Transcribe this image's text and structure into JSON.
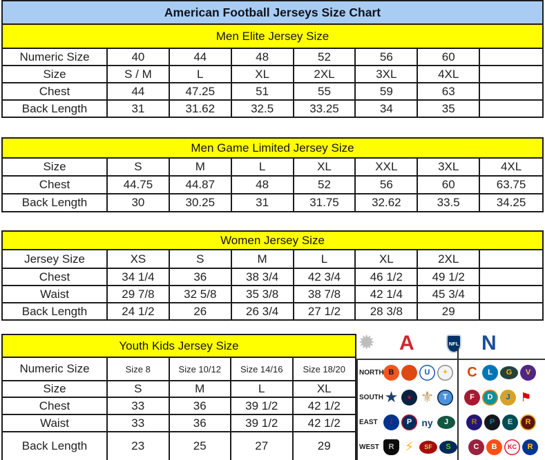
{
  "title": "American Football Jerseys Size Chart",
  "colors": {
    "title_bg": "#a9cdf2",
    "section_header_bg": "#ffff00",
    "border": "#1c1c1c",
    "afc_red": "#cf2630",
    "nfc_blue": "#1b4e9b",
    "nfl_shield_blue": "#013369",
    "starburst_silver": "#bdbdbd"
  },
  "tables": [
    {
      "id": "men_elite",
      "header": "Men Elite Jersey Size",
      "rows": [
        [
          "Numeric Size",
          "40",
          "44",
          "48",
          "52",
          "56",
          "60",
          ""
        ],
        [
          "Size",
          "S / M",
          "L",
          "XL",
          "2XL",
          "3XL",
          "4XL",
          ""
        ],
        [
          "Chest",
          "44",
          "47.25",
          "51",
          "55",
          "59",
          "63",
          ""
        ],
        [
          "Back Length",
          "31",
          "31.62",
          "32.5",
          "33.25",
          "34",
          "35",
          ""
        ]
      ]
    },
    {
      "id": "men_game_limited",
      "header": "Men Game Limited Jersey Size",
      "rows": [
        [
          "Size",
          "S",
          "M",
          "L",
          "XL",
          "XXL",
          "3XL",
          "4XL"
        ],
        [
          "Chest",
          "44.75",
          "44.87",
          "48",
          "52",
          "56",
          "60",
          "63.75"
        ],
        [
          "Back Length",
          "30",
          "30.25",
          "31",
          "31.75",
          "32.62",
          "33.5",
          "34.25"
        ]
      ]
    },
    {
      "id": "women",
      "header": "Women Jersey Size",
      "rows": [
        [
          "Jersey Size",
          "XS",
          "S",
          "M",
          "L",
          "XL",
          "2XL",
          ""
        ],
        [
          "Chest",
          "34 1/4",
          "36",
          "38 3/4",
          "42 3/4",
          "46 1/2",
          "49 1/2",
          ""
        ],
        [
          "Waist",
          "29 7/8",
          "32 5/8",
          "35 3/8",
          "38 7/8",
          "42 1/4",
          "45 3/4",
          ""
        ],
        [
          "Back Length",
          "24 1/2",
          "26",
          "26 3/4",
          "27 1/2",
          "28 3/8",
          "29",
          ""
        ]
      ]
    },
    {
      "id": "youth_kids",
      "header": "Youth Kids Jersey Size",
      "rows": [
        [
          "Numeric Size",
          "Size 8",
          "Size 10/12",
          "Size 14/16",
          "Size 18/20"
        ],
        [
          "Size",
          "S",
          "M",
          "L",
          "XL"
        ],
        [
          "Chest",
          "33",
          "36",
          "39 1/2",
          "42 1/2"
        ],
        [
          "Waist",
          "33",
          "36",
          "39 1/2",
          "42 1/2"
        ],
        [
          "Back Length",
          "23",
          "25",
          "27",
          "29"
        ]
      ]
    }
  ],
  "logo_panel": {
    "star_glyph": "✹",
    "afc_label": "A",
    "nfl_label": "NFL",
    "nfc_label": "N",
    "rows": [
      {
        "label": "NORTH",
        "afc": [
          {
            "name": "bengals",
            "glyph": "B",
            "bg": "#f0561e",
            "fg": "#151515"
          },
          {
            "name": "browns",
            "glyph": "",
            "bg": "#dd4a12"
          },
          {
            "name": "colts",
            "glyph": "U",
            "bg": "#ffffff",
            "fg": "#1555b8",
            "border": "#1555b8"
          },
          {
            "name": "steelers",
            "glyph": "✦",
            "bg": "#f4f4f4",
            "fg": "#f1b82d",
            "border": "#8a8a8a"
          }
        ],
        "nfc": [
          {
            "name": "bears",
            "glyph": "C",
            "shape": "glyph",
            "fg": "#d4490c",
            "size": 20
          },
          {
            "name": "lions",
            "glyph": "L",
            "bg": "#0076b6",
            "fg": "#ffffff"
          },
          {
            "name": "packers",
            "glyph": "G",
            "bg": "#24423c",
            "fg": "#ffb612",
            "shape": "oval"
          },
          {
            "name": "vikings",
            "glyph": "V",
            "bg": "#4f2683",
            "fg": "#ffc62f"
          }
        ]
      },
      {
        "label": "SOUTH",
        "afc": [
          {
            "name": "cowboys",
            "glyph": "★",
            "shape": "glyph",
            "fg": "#1d3f72"
          },
          {
            "name": "texans",
            "glyph": "★",
            "bg": "#0b2243",
            "fg": "#c41230",
            "size": 9
          },
          {
            "name": "saints",
            "glyph": "⚜",
            "shape": "glyph",
            "fg": "#bfa264"
          },
          {
            "name": "titans",
            "glyph": "T",
            "bg": "#4b92db",
            "fg": "#ffffff",
            "border": "#0c2340"
          }
        ],
        "nfc": [
          {
            "name": "falcons",
            "glyph": "F",
            "bg": "#a71930",
            "fg": "#ffffff"
          },
          {
            "name": "dolphins",
            "glyph": "D",
            "bg": "#00949e",
            "fg": "#ffffff",
            "border": "#f58220"
          },
          {
            "name": "jaguars",
            "glyph": "J",
            "bg": "#d7a22a",
            "fg": "#006778"
          },
          {
            "name": "buccaneers",
            "glyph": "⚑",
            "shape": "glyph",
            "fg": "#d50a0a",
            "size": 18
          }
        ]
      },
      {
        "label": "EAST",
        "afc": [
          {
            "name": "bills",
            "glyph": "/",
            "bg": "#00338d",
            "fg": "#c60c30"
          },
          {
            "name": "patriots",
            "glyph": "P",
            "bg": "#002a5c",
            "fg": "#ffffff",
            "border": "#c8102e"
          },
          {
            "name": "giants",
            "glyph": "ny",
            "shape": "glyph",
            "fg": "#1d3f72",
            "size": 14
          },
          {
            "name": "jets",
            "glyph": "J",
            "bg": "#125740",
            "fg": "#ffffff",
            "shape": "oval"
          }
        ],
        "nfc": [
          {
            "name": "ravens",
            "glyph": "R",
            "bg": "#241773",
            "fg": "#9e7c0c"
          },
          {
            "name": "panthers",
            "glyph": "P",
            "bg": "#101820",
            "fg": "#0085ca"
          },
          {
            "name": "eagles",
            "glyph": "E",
            "bg": "#004c54",
            "fg": "#cfd4d8"
          },
          {
            "name": "redskins",
            "glyph": "R",
            "bg": "#5a1414",
            "fg": "#ffb612",
            "border": "#ffb612"
          }
        ]
      },
      {
        "label": "WEST",
        "afc": [
          {
            "name": "raiders",
            "glyph": "R",
            "bg": "#0b0b0b",
            "fg": "#b8bdc0",
            "shape": "shieldchip"
          },
          {
            "name": "chargers",
            "glyph": "⚡",
            "shape": "glyph",
            "fg": "#f6b51d",
            "size": 19
          },
          {
            "name": "49ers",
            "glyph": "SF",
            "bg": "#a60c0c",
            "fg": "#e9c667",
            "shape": "oval",
            "size": 9
          },
          {
            "name": "seahawks",
            "glyph": "S",
            "bg": "#002a5c",
            "fg": "#69be28",
            "shape": "oval"
          }
        ],
        "nfc": [
          {
            "name": "cardinals",
            "glyph": "C",
            "bg": "#97233f",
            "fg": "#ffffff"
          },
          {
            "name": "broncos",
            "glyph": "B",
            "bg": "#fb4f14",
            "fg": "#ffffff"
          },
          {
            "name": "chiefs",
            "glyph": "KC",
            "bg": "#f5f5f5",
            "fg": "#e31837",
            "border": "#e31837",
            "size": 9
          },
          {
            "name": "rams",
            "glyph": "R",
            "bg": "#003594",
            "fg": "#ffd100"
          }
        ]
      }
    ]
  }
}
